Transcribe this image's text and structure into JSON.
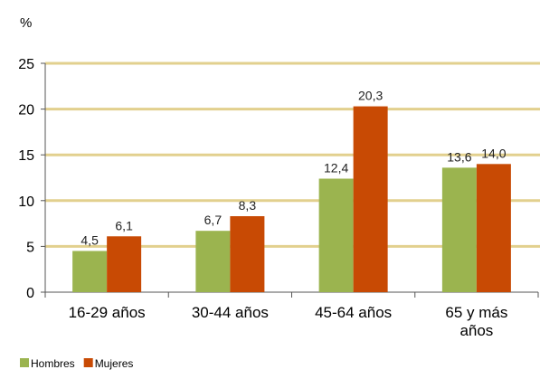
{
  "chart_data": {
    "type": "bar",
    "unit_label": "%",
    "categories": [
      [
        "16-29 años"
      ],
      [
        "30-44 años"
      ],
      [
        "45-64 años"
      ],
      [
        "65 y más",
        "años"
      ]
    ],
    "series": [
      {
        "name": "Hombres",
        "color": "#9bb44f",
        "values": [
          4.5,
          6.7,
          12.4,
          13.6
        ],
        "labels": [
          "4,5",
          "6,7",
          "12,4",
          "13,6"
        ]
      },
      {
        "name": "Mujeres",
        "color": "#c84a04",
        "values": [
          6.1,
          8.3,
          20.3,
          14.0
        ],
        "labels": [
          "6,1",
          "8,3",
          "20,3",
          "14,0"
        ]
      }
    ],
    "y_ticks": [
      "0",
      "5",
      "10",
      "15",
      "20",
      "25"
    ],
    "ylim": [
      0,
      25
    ],
    "gridline_color": "#e2d08e",
    "grid": true,
    "legend_position": "bottom-left"
  }
}
